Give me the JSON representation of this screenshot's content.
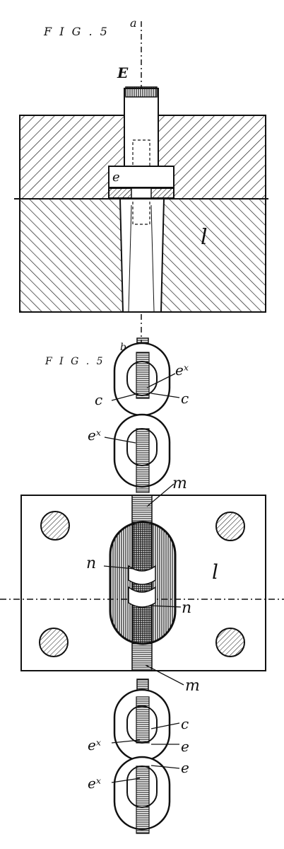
{
  "figures": {
    "fig5a": {
      "caption": "F I G . 5",
      "suffix": "a"
    },
    "fig5b": {
      "caption": "F I G . 5",
      "suffix": "b"
    }
  },
  "labels": {
    "axis_top": "E",
    "e": "e",
    "l_upper": "l",
    "l_lower": "l",
    "ex": "eˣ",
    "c": "c",
    "m": "m",
    "n": "n"
  },
  "colors": {
    "ink": "#111111",
    "paper": "#ffffff"
  }
}
